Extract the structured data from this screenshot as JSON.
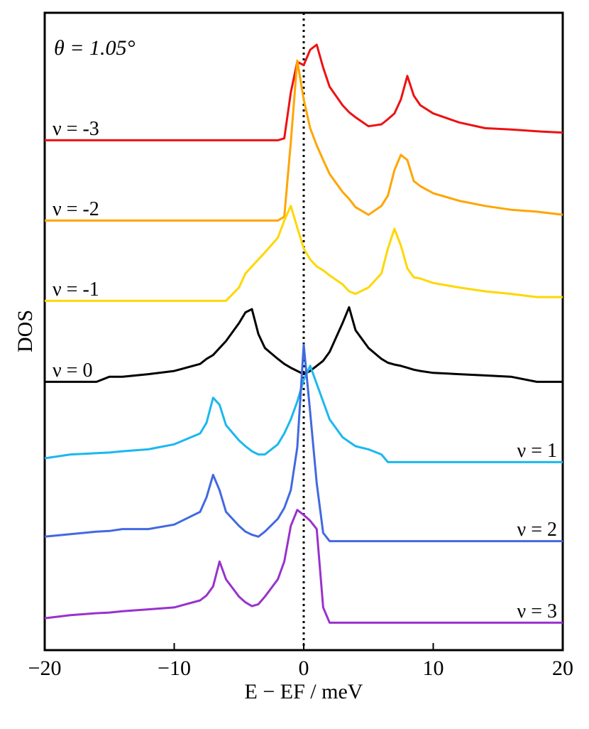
{
  "chart_data": {
    "type": "line",
    "annotation": "θ = 1.05°",
    "xlabel": "E − EF / meV",
    "ylabel": "DOS",
    "xlim": [
      -20,
      20
    ],
    "xticks": [
      {
        "value": -20,
        "label": "−20"
      },
      {
        "value": -10,
        "label": "−10"
      },
      0,
      10,
      20
    ],
    "ylim": [
      0,
      100
    ],
    "reference_line_x": 0,
    "x": [
      -20,
      -18,
      -16,
      -15,
      -14,
      -12,
      -10,
      -8,
      -7.5,
      -7,
      -6.5,
      -6,
      -5,
      -4.5,
      -4,
      -3.5,
      -3,
      -2,
      -1.5,
      -1,
      -0.5,
      0,
      0.5,
      1,
      1.5,
      2,
      3,
      3.5,
      4,
      5,
      6,
      6.5,
      7,
      7.5,
      8,
      8.5,
      9,
      10,
      12,
      14,
      16,
      18,
      20
    ],
    "series": [
      {
        "name": "ν = -3",
        "color": "#ee1111",
        "values": [
          80.0,
          80.0,
          80.0,
          80.0,
          80.0,
          80.0,
          80.0,
          80.0,
          80.0,
          80.0,
          80.0,
          80.0,
          80.0,
          80.0,
          80.0,
          80.0,
          80.0,
          80.0,
          80.3,
          87.5,
          92.3,
          91.8,
          94.2,
          95.0,
          91.4,
          88.4,
          85.5,
          84.4,
          83.6,
          82.2,
          82.5,
          83.3,
          84.2,
          86.4,
          90.1,
          87.0,
          85.5,
          84.2,
          82.8,
          81.9,
          81.7,
          81.4,
          81.2
        ]
      },
      {
        "name": "ν = -2",
        "color": "#ffa500",
        "values": [
          67.4,
          67.4,
          67.4,
          67.4,
          67.4,
          67.4,
          67.4,
          67.4,
          67.4,
          67.4,
          67.4,
          67.4,
          67.4,
          67.4,
          67.4,
          67.4,
          67.4,
          67.4,
          68.0,
          79.7,
          92.5,
          86.4,
          81.9,
          79.2,
          76.9,
          74.7,
          71.9,
          70.8,
          69.5,
          68.3,
          69.7,
          71.3,
          75.3,
          77.7,
          76.9,
          73.6,
          72.8,
          71.7,
          70.5,
          69.7,
          69.1,
          68.8,
          68.3
        ]
      },
      {
        "name": "ν = -1",
        "color": "#ffd700",
        "values": [
          54.8,
          54.8,
          54.8,
          54.8,
          54.8,
          54.8,
          54.8,
          54.8,
          54.8,
          54.8,
          54.8,
          54.8,
          56.9,
          59.1,
          60.2,
          61.3,
          62.4,
          64.7,
          67.4,
          69.7,
          66.3,
          63.0,
          61.3,
          60.2,
          59.6,
          58.8,
          57.4,
          56.3,
          55.9,
          56.9,
          59.1,
          63.0,
          66.1,
          63.5,
          59.9,
          58.5,
          58.3,
          57.6,
          56.9,
          56.3,
          55.9,
          55.4,
          55.4
        ]
      },
      {
        "name": "ν = 0",
        "color": "#000000",
        "values": [
          42.1,
          42.1,
          42.1,
          42.9,
          42.9,
          43.3,
          43.8,
          44.9,
          45.7,
          46.3,
          47.4,
          48.5,
          51.3,
          53.0,
          53.5,
          49.6,
          47.4,
          45.7,
          44.9,
          44.3,
          43.8,
          43.3,
          43.8,
          44.6,
          45.4,
          46.8,
          51.3,
          53.8,
          50.2,
          47.4,
          45.7,
          45.1,
          44.8,
          44.6,
          44.3,
          44.0,
          43.8,
          43.5,
          43.3,
          43.1,
          42.9,
          42.1,
          42.1
        ]
      },
      {
        "name": "ν = 1",
        "color": "#1ab8f0",
        "values": [
          30.1,
          30.7,
          30.9,
          31.0,
          31.2,
          31.5,
          32.3,
          34.0,
          35.7,
          39.6,
          38.5,
          35.3,
          32.9,
          32.0,
          31.2,
          30.7,
          30.7,
          32.3,
          34.0,
          36.2,
          39.0,
          42.4,
          44.6,
          41.8,
          39.0,
          36.2,
          33.4,
          32.7,
          32.0,
          31.5,
          30.7,
          29.5,
          29.5,
          29.5,
          29.5,
          29.5,
          29.5,
          29.5,
          29.5,
          29.5,
          29.5,
          29.5,
          29.5
        ]
      },
      {
        "name": "ν = 2",
        "color": "#4169e1",
        "values": [
          17.8,
          18.2,
          18.6,
          18.7,
          19.0,
          19.0,
          19.7,
          21.7,
          24.0,
          27.5,
          25.1,
          21.7,
          19.5,
          18.6,
          18.1,
          17.8,
          18.6,
          20.6,
          22.3,
          25.1,
          31.8,
          47.9,
          37.3,
          26.2,
          18.4,
          17.1,
          17.1,
          17.1,
          17.1,
          17.1,
          17.1,
          17.1,
          17.1,
          17.1,
          17.1,
          17.1,
          17.1,
          17.1,
          17.1,
          17.1,
          17.1,
          17.1,
          17.1
        ]
      },
      {
        "name": "ν = 3",
        "color": "#9932cc",
        "values": [
          5.0,
          5.5,
          5.8,
          5.9,
          6.1,
          6.4,
          6.7,
          7.8,
          8.6,
          10.0,
          13.9,
          11.1,
          8.4,
          7.5,
          6.9,
          7.2,
          8.4,
          11.1,
          13.9,
          19.5,
          22.0,
          21.2,
          20.3,
          19.0,
          6.7,
          4.3,
          4.3,
          4.3,
          4.3,
          4.3,
          4.3,
          4.3,
          4.3,
          4.3,
          4.3,
          4.3,
          4.3,
          4.3,
          4.3,
          4.3,
          4.3,
          4.3,
          4.3
        ]
      }
    ]
  }
}
